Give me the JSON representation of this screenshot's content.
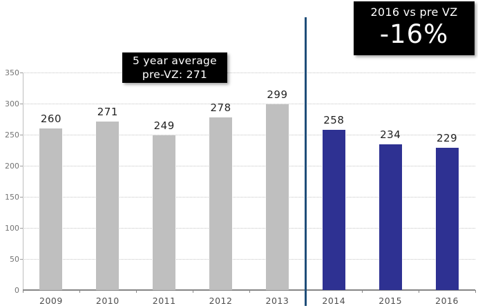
{
  "chart_data": {
    "type": "bar",
    "title": "",
    "categories": [
      "2009",
      "2010",
      "2011",
      "2012",
      "2013",
      "2014",
      "2015",
      "2016"
    ],
    "series": [
      {
        "name": "annual-value",
        "values": [
          260,
          271,
          249,
          278,
          299,
          258,
          234,
          229
        ]
      }
    ],
    "groups": [
      "pre_vz",
      "pre_vz",
      "pre_vz",
      "pre_vz",
      "pre_vz",
      "post_vz",
      "post_vz",
      "post_vz"
    ],
    "xlabel": "",
    "ylabel": "",
    "ylim": [
      0,
      350
    ],
    "yticks": [
      0,
      50,
      100,
      150,
      200,
      250,
      300,
      350
    ],
    "grid": "horizontal-dotted",
    "legend": "none",
    "divider_between": [
      "2013",
      "2014"
    ],
    "annotations": [
      {
        "id": "avg_box",
        "lines": [
          "5 year average",
          "pre-VZ: 271"
        ]
      },
      {
        "id": "delta_box",
        "lines": [
          "2016 vs pre VZ",
          "-16%"
        ]
      }
    ]
  },
  "annotations": {
    "avg_box": {
      "line1": "5 year average",
      "line2": "pre-VZ: 271"
    },
    "delta_box": {
      "line1": "2016 vs pre VZ",
      "line2": "-16%"
    }
  },
  "colors": {
    "pre_vz_bar": "#bfbfbf",
    "post_vz_bar": "#2e3192",
    "divider_line": "#1f4e79",
    "annotation_bg": "#000000",
    "annotation_text": "#ffffff",
    "gridline": "#c3c3c3",
    "axis_line": "#858585",
    "y_axis_line": "#bdbdbd",
    "tick_label": "#737373",
    "category_label": "#4d4d4d",
    "value_label": "#1f1f1f"
  }
}
